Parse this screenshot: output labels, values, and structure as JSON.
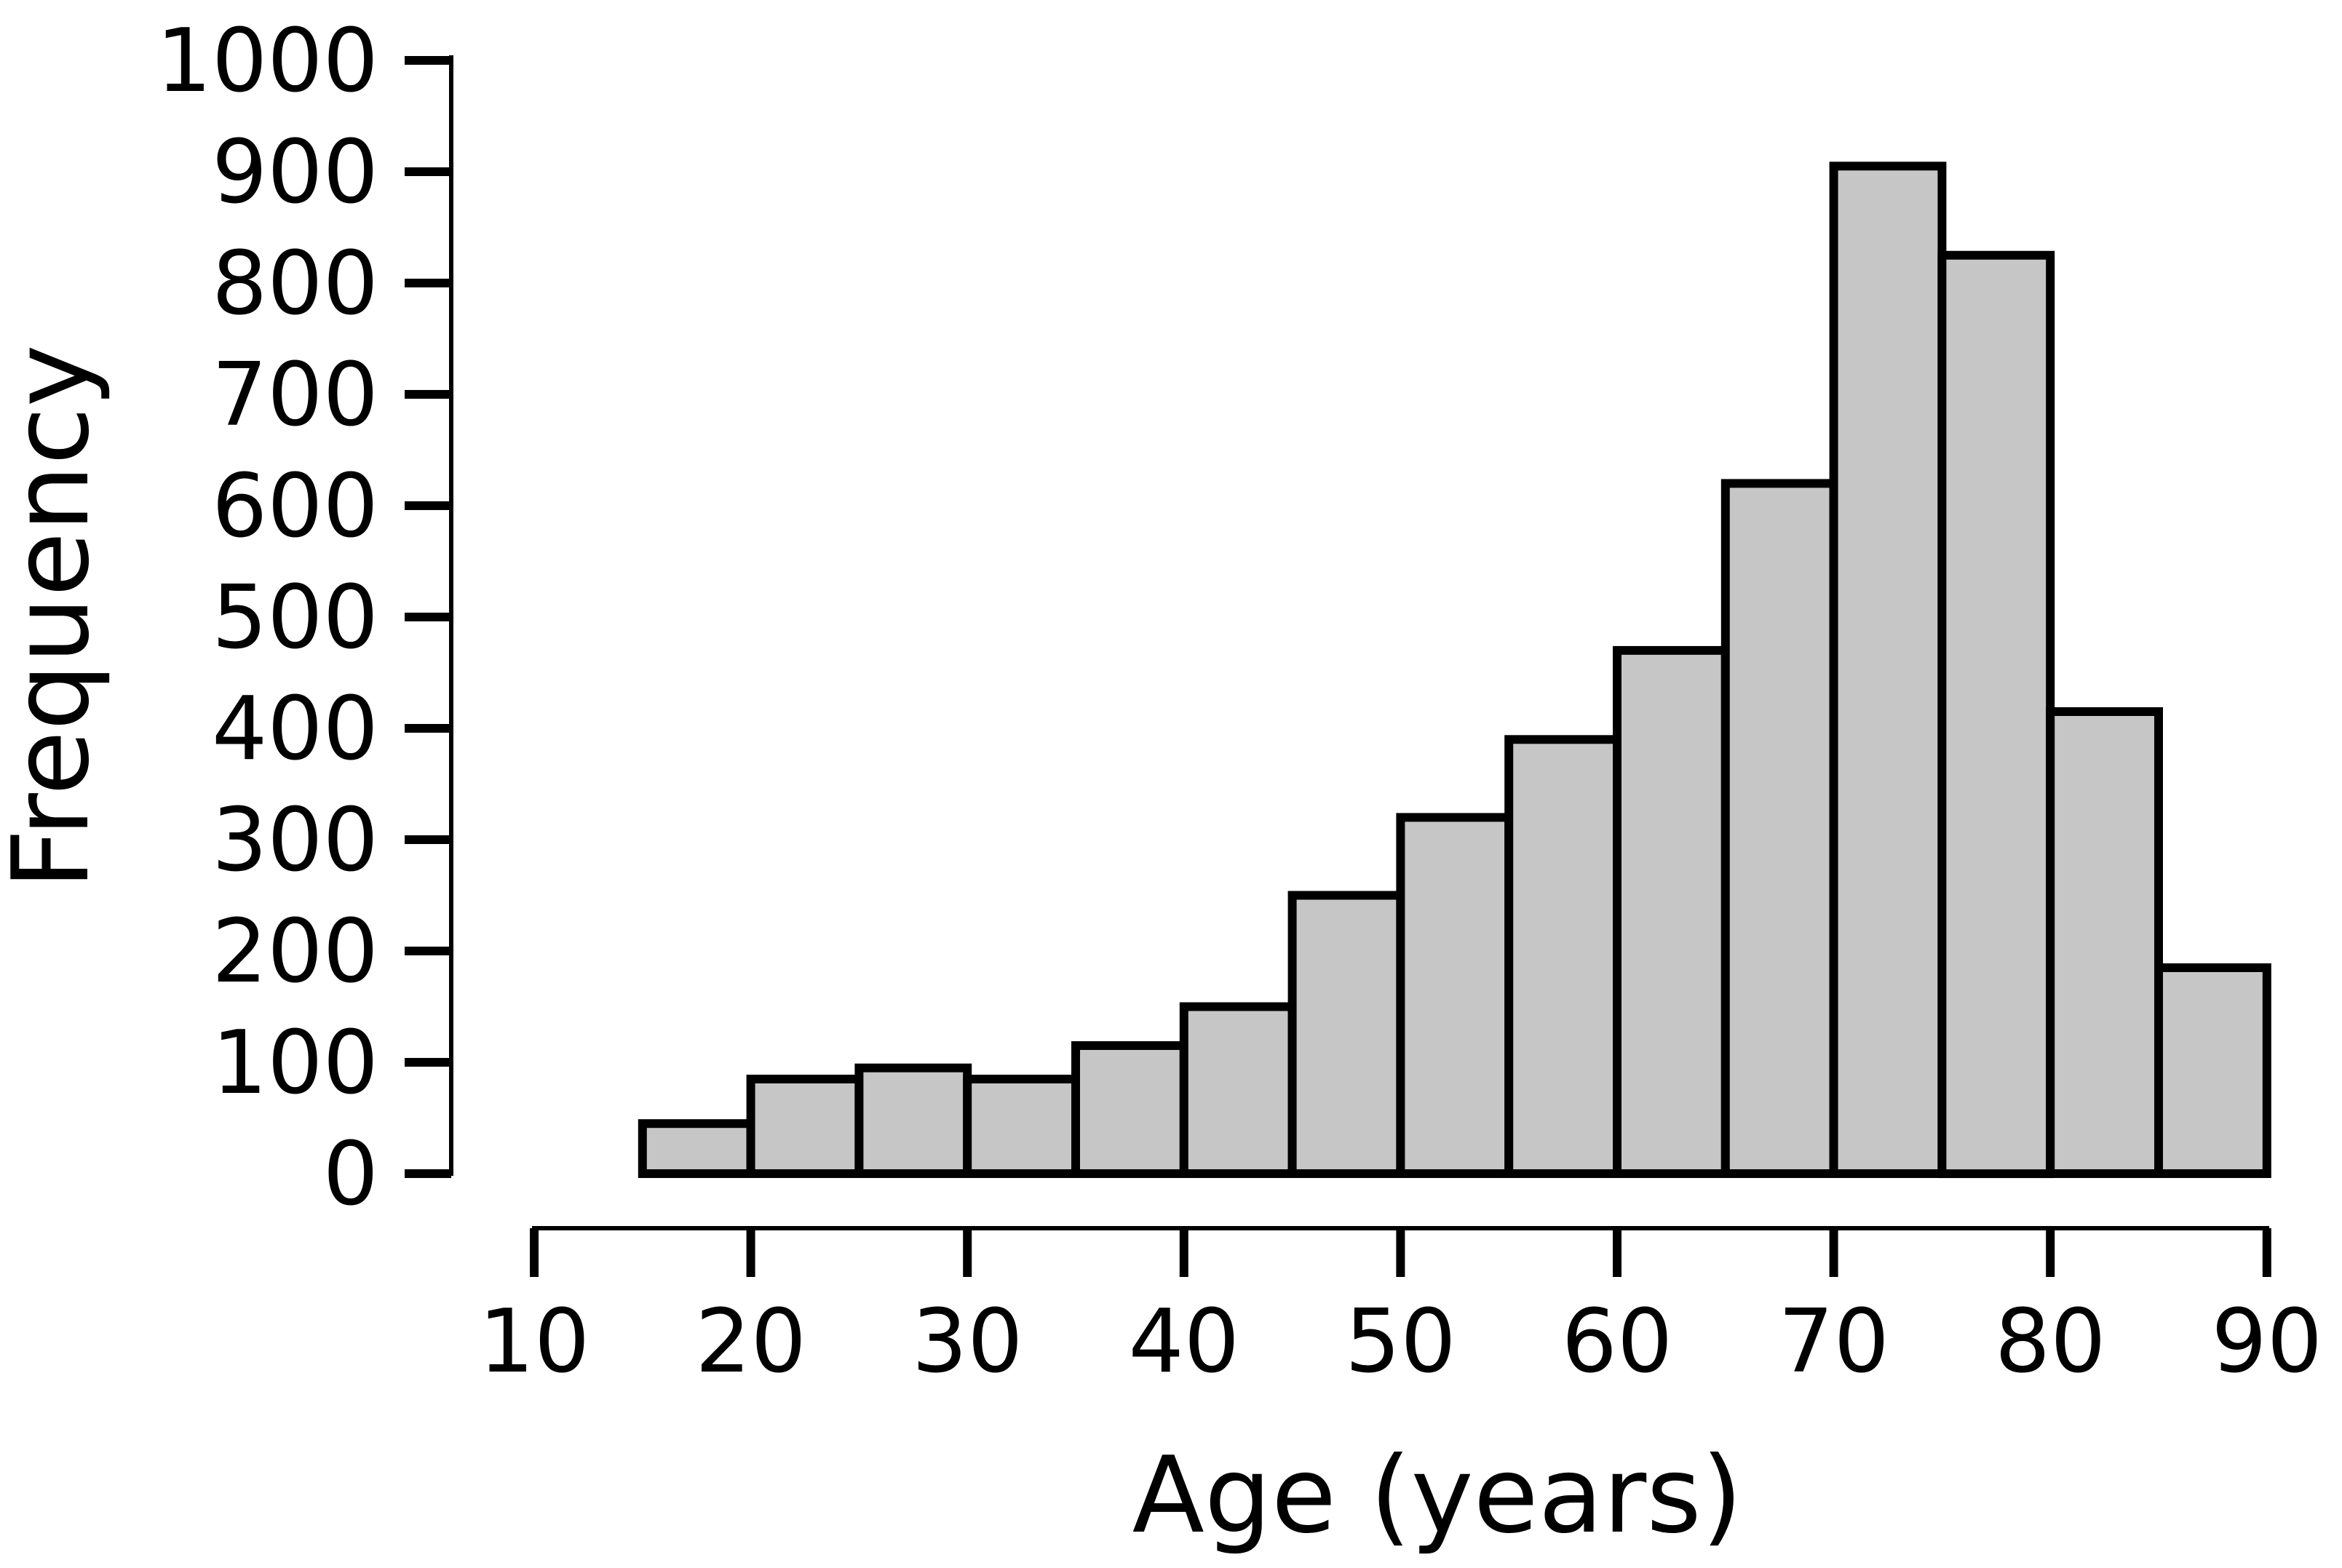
{
  "figure": {
    "background_color": "#ffffff",
    "text_color": "#000000",
    "axis_color": "#000000"
  },
  "chart_data": {
    "type": "bar",
    "subtype": "histogram",
    "title": "",
    "xlabel": "Age (years)",
    "ylabel": "Frequency",
    "bin_width": 5,
    "bin_edges": [
      15,
      20,
      25,
      30,
      35,
      40,
      45,
      50,
      55,
      60,
      65,
      70,
      75,
      80,
      85,
      90
    ],
    "categories": [
      "15-20",
      "20-25",
      "25-30",
      "30-35",
      "35-40",
      "40-45",
      "45-50",
      "50-55",
      "55-60",
      "60-65",
      "65-70",
      "70-75",
      "75-80",
      "80-85",
      "85-90"
    ],
    "values": [
      45,
      85,
      95,
      85,
      115,
      150,
      250,
      320,
      390,
      470,
      620,
      905,
      825,
      415,
      185
    ],
    "x_ticks": [
      10,
      20,
      30,
      40,
      50,
      60,
      70,
      80,
      90
    ],
    "y_ticks": [
      0,
      100,
      200,
      300,
      400,
      500,
      600,
      700,
      800,
      900,
      1000
    ],
    "xlim": [
      10,
      90
    ],
    "ylim": [
      0,
      1000
    ],
    "grid": false,
    "legend": null,
    "bar_fill_color": "#c6c6c6",
    "bar_border_color": "#000000"
  }
}
